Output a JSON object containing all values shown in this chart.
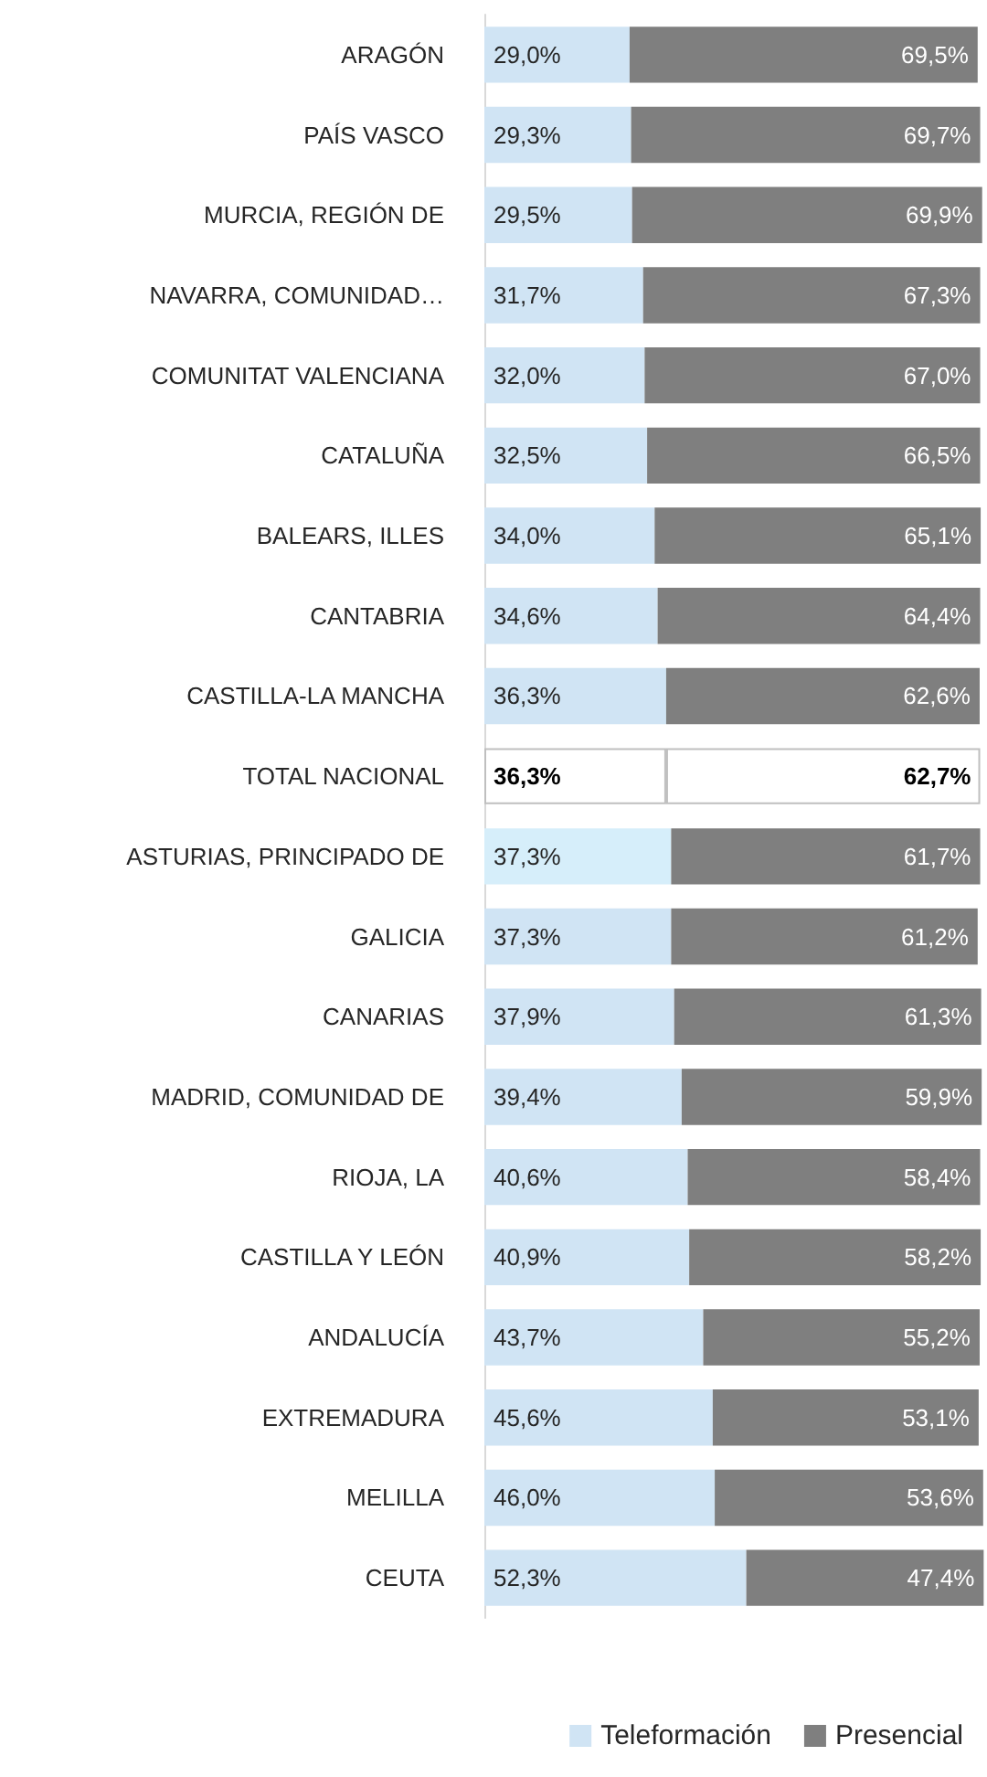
{
  "chart_data": {
    "type": "bar",
    "orientation": "horizontal",
    "stacked": true,
    "xlim": [
      0,
      100
    ],
    "tick_labels": "y",
    "grid": false,
    "legend": "bottom right",
    "categories": [
      "ARAGÓN",
      "PAÍS VASCO",
      "MURCIA, REGIÓN DE",
      "NAVARRA, COMUNIDAD…",
      "COMUNITAT VALENCIANA",
      "CATALUÑA",
      "BALEARS, ILLES",
      "CANTABRIA",
      "CASTILLA-LA MANCHA",
      "TOTAL NACIONAL",
      "ASTURIAS, PRINCIPADO DE",
      "GALICIA",
      "CANARIAS",
      "MADRID, COMUNIDAD DE",
      "RIOJA, LA",
      "CASTILLA Y LEÓN",
      "ANDALUCÍA",
      "EXTREMADURA",
      "MELILLA",
      "CEUTA"
    ],
    "series": [
      {
        "name": "Teleformación",
        "color": "#d0e4f4",
        "colors": [
          "#d0e4f4",
          "#d0e4f4",
          "#d0e4f4",
          "#d0e4f4",
          "#d0e4f4",
          "#d0e4f4",
          "#d0e4f4",
          "#d0e4f4",
          "#d0e4f4",
          "#ffffff",
          "#d6eefa",
          "#d0e4f4",
          "#d0e4f4",
          "#d0e4f4",
          "#d0e4f4",
          "#d0e4f4",
          "#d0e4f4",
          "#d0e4f4",
          "#d0e4f4",
          "#d0e4f4"
        ],
        "values": [
          29.0,
          29.3,
          29.5,
          31.7,
          32.0,
          32.5,
          34.0,
          34.6,
          36.3,
          36.3,
          37.3,
          37.3,
          37.9,
          39.4,
          40.6,
          40.9,
          43.7,
          45.6,
          46.0,
          52.3
        ],
        "value_labels": [
          "29,0%",
          "29,3%",
          "29,5%",
          "31,7%",
          "32,0%",
          "32,5%",
          "34,0%",
          "34,6%",
          "36,3%",
          "36,3%",
          "37,3%",
          "37,3%",
          "37,9%",
          "39,4%",
          "40,6%",
          "40,9%",
          "43,7%",
          "45,6%",
          "46,0%",
          "52,3%"
        ]
      },
      {
        "name": "Presencial",
        "color": "#7f7f7f",
        "colors": [
          "#7f7f7f",
          "#7f7f7f",
          "#7f7f7f",
          "#7f7f7f",
          "#7f7f7f",
          "#7f7f7f",
          "#7f7f7f",
          "#7f7f7f",
          "#7f7f7f",
          "#ffffff",
          "#7f7f7f",
          "#7f7f7f",
          "#7f7f7f",
          "#7f7f7f",
          "#7f7f7f",
          "#7f7f7f",
          "#7f7f7f",
          "#7f7f7f",
          "#7f7f7f",
          "#7f7f7f"
        ],
        "values": [
          69.5,
          69.7,
          69.9,
          67.3,
          67.0,
          66.5,
          65.1,
          64.4,
          62.6,
          62.7,
          61.7,
          61.2,
          61.3,
          59.9,
          58.4,
          58.2,
          55.2,
          53.1,
          53.6,
          47.4
        ],
        "value_labels": [
          "69,5%",
          "69,7%",
          "69,9%",
          "67,3%",
          "67,0%",
          "66,5%",
          "65,1%",
          "64,4%",
          "62,6%",
          "62,7%",
          "61,7%",
          "61,2%",
          "61,3%",
          "59,9%",
          "58,4%",
          "58,2%",
          "55,2%",
          "53,1%",
          "53,6%",
          "47,4%"
        ]
      }
    ]
  }
}
